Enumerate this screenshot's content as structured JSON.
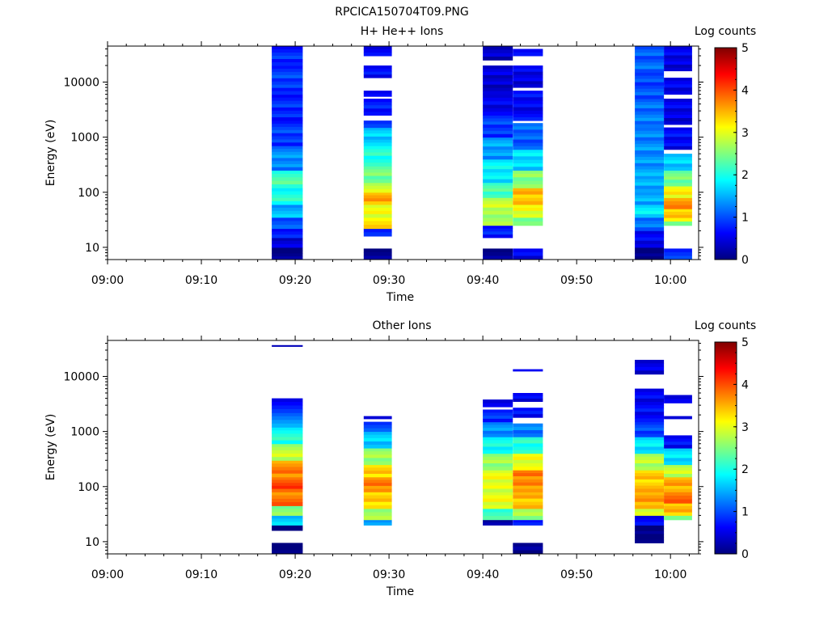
{
  "figure_title": "RPCICA150704T09.PNG",
  "colormap": [
    "#00007f",
    "#0000ff",
    "#007fff",
    "#00ffff",
    "#7fff7f",
    "#ffff00",
    "#ff7f00",
    "#ff0000",
    "#7f0000"
  ],
  "chart_data": [
    {
      "type": "heatmap",
      "title": "H+ He++ Ions",
      "xlabel": "Time",
      "ylabel": "Energy (eV)",
      "colorbar_label": "Log counts",
      "x_ticks": [
        "09:00",
        "09:10",
        "09:20",
        "09:30",
        "09:40",
        "09:50",
        "10:00"
      ],
      "x_range_minutes": [
        0,
        63
      ],
      "y_scale": "log",
      "y_range": [
        6,
        45000
      ],
      "y_ticks": [
        "10",
        "100",
        "1000",
        "10000"
      ],
      "colorbar_range": [
        0,
        5
      ],
      "colorbar_ticks": [
        "0",
        "1",
        "2",
        "3",
        "4",
        "5"
      ],
      "columns": [
        {
          "x_start": 17.5,
          "x_end": 20.8,
          "cells": [
            [
              6,
              10,
              0.0
            ],
            [
              10,
              15,
              0.5
            ],
            [
              15,
              22,
              0.8
            ],
            [
              22,
              35,
              1.1
            ],
            [
              35,
              60,
              1.5
            ],
            [
              60,
              120,
              2.0
            ],
            [
              120,
              250,
              2.2
            ],
            [
              250,
              700,
              1.3
            ],
            [
              700,
              2000,
              0.9
            ],
            [
              2000,
              6000,
              0.8
            ],
            [
              6000,
              20000,
              0.9
            ],
            [
              20000,
              45000,
              0.8
            ]
          ]
        },
        {
          "x_start": 27.3,
          "x_end": 30.3,
          "cells": [
            [
              6,
              9.5,
              0.0
            ],
            [
              16,
              22,
              0.8
            ],
            [
              22,
              35,
              3.2
            ],
            [
              35,
              60,
              3.0
            ],
            [
              60,
              100,
              3.5
            ],
            [
              100,
              150,
              2.8
            ],
            [
              150,
              300,
              2.4
            ],
            [
              300,
              700,
              2.0
            ],
            [
              700,
              1500,
              1.6
            ],
            [
              1500,
              2000,
              0.9
            ],
            [
              2500,
              5000,
              0.7
            ],
            [
              5500,
              7000,
              0.6
            ],
            [
              12000,
              20000,
              0.6
            ],
            [
              30000,
              45000,
              0.5
            ]
          ]
        },
        {
          "x_start": 40.0,
          "x_end": 43.2,
          "cells": [
            [
              6,
              9.5,
              0.0
            ],
            [
              15,
              25,
              0.7
            ],
            [
              25,
              40,
              2.6
            ],
            [
              40,
              80,
              2.8
            ],
            [
              80,
              150,
              2.2
            ],
            [
              150,
              400,
              1.8
            ],
            [
              400,
              1000,
              1.4
            ],
            [
              1000,
              2500,
              0.9
            ],
            [
              2500,
              6000,
              0.5
            ],
            [
              6000,
              20000,
              0.4
            ],
            [
              25000,
              45000,
              0.3
            ]
          ]
        },
        {
          "x_start": 43.2,
          "x_end": 46.4,
          "cells": [
            [
              6,
              9.5,
              0.5
            ],
            [
              25,
              35,
              2.3
            ],
            [
              35,
              60,
              3.0
            ],
            [
              60,
              120,
              3.4
            ],
            [
              120,
              250,
              2.5
            ],
            [
              250,
              600,
              1.7
            ],
            [
              600,
              1800,
              1.1
            ],
            [
              2000,
              7000,
              0.6
            ],
            [
              8000,
              20000,
              0.5
            ],
            [
              30000,
              40000,
              0.5
            ]
          ]
        },
        {
          "x_start": 56.2,
          "x_end": 59.3,
          "cells": [
            [
              6,
              10,
              0.0
            ],
            [
              10,
              20,
              0.6
            ],
            [
              20,
              35,
              1.2
            ],
            [
              35,
              60,
              1.8
            ],
            [
              60,
              100,
              1.5
            ],
            [
              100,
              200,
              1.5
            ],
            [
              200,
              500,
              1.4
            ],
            [
              500,
              1500,
              1.3
            ],
            [
              1500,
              5000,
              1.2
            ],
            [
              5000,
              15000,
              1.0
            ],
            [
              15000,
              45000,
              1.1
            ]
          ]
        },
        {
          "x_start": 59.3,
          "x_end": 62.3,
          "cells": [
            [
              6,
              9.5,
              0.8
            ],
            [
              25,
              30,
              2.5
            ],
            [
              30,
              50,
              3.3
            ],
            [
              50,
              80,
              3.6
            ],
            [
              80,
              130,
              3.1
            ],
            [
              130,
              250,
              2.4
            ],
            [
              250,
              500,
              1.6
            ],
            [
              600,
              1500,
              0.6
            ],
            [
              1700,
              5000,
              0.5
            ],
            [
              6000,
              12000,
              0.5
            ],
            [
              16000,
              45000,
              0.5
            ]
          ]
        }
      ]
    },
    {
      "type": "heatmap",
      "title": "Other Ions",
      "xlabel": "Time",
      "ylabel": "Energy (eV)",
      "colorbar_label": "Log counts",
      "x_ticks": [
        "09:00",
        "09:10",
        "09:20",
        "09:30",
        "09:40",
        "09:50",
        "10:00"
      ],
      "x_range_minutes": [
        0,
        63
      ],
      "y_scale": "log",
      "y_range": [
        6,
        45000
      ],
      "y_ticks": [
        "10",
        "100",
        "1000",
        "10000"
      ],
      "colorbar_range": [
        0,
        5
      ],
      "colorbar_ticks": [
        "0",
        "1",
        "2",
        "3",
        "4",
        "5"
      ],
      "columns": [
        {
          "x_start": 17.5,
          "x_end": 20.8,
          "cells": [
            [
              6,
              9.5,
              0.0
            ],
            [
              16,
              20,
              0.0
            ],
            [
              20,
              30,
              1.7
            ],
            [
              30,
              45,
              2.6
            ],
            [
              45,
              80,
              3.8
            ],
            [
              80,
              150,
              4.0
            ],
            [
              150,
              300,
              3.7
            ],
            [
              300,
              600,
              2.8
            ],
            [
              600,
              1200,
              2.0
            ],
            [
              1200,
              2200,
              1.3
            ],
            [
              2200,
              4000,
              0.7
            ],
            [
              35000,
              37000,
              0.5
            ]
          ]
        },
        {
          "x_start": 27.3,
          "x_end": 30.3,
          "cells": [
            [
              20,
              25,
              1.4
            ],
            [
              25,
              40,
              2.6
            ],
            [
              40,
              80,
              3.3
            ],
            [
              80,
              150,
              3.7
            ],
            [
              150,
              250,
              3.3
            ],
            [
              250,
              500,
              2.6
            ],
            [
              500,
              1000,
              1.6
            ],
            [
              1000,
              1500,
              0.9
            ],
            [
              1700,
              1900,
              0.5
            ]
          ]
        },
        {
          "x_start": 40.0,
          "x_end": 43.2,
          "cells": [
            [
              20,
              25,
              0.2
            ],
            [
              25,
              40,
              2.1
            ],
            [
              40,
              80,
              3.0
            ],
            [
              80,
              200,
              3.0
            ],
            [
              200,
              400,
              2.6
            ],
            [
              400,
              800,
              1.9
            ],
            [
              800,
              1500,
              1.3
            ],
            [
              1500,
              2500,
              0.8
            ],
            [
              2800,
              3800,
              0.5
            ]
          ]
        },
        {
          "x_start": 43.2,
          "x_end": 46.4,
          "cells": [
            [
              6,
              9.5,
              0.0
            ],
            [
              20,
              25,
              0.6
            ],
            [
              25,
              40,
              2.6
            ],
            [
              40,
              80,
              3.4
            ],
            [
              80,
              200,
              3.7
            ],
            [
              200,
              400,
              3.0
            ],
            [
              400,
              800,
              2.0
            ],
            [
              800,
              1400,
              1.2
            ],
            [
              1800,
              2700,
              0.6
            ],
            [
              3500,
              5000,
              0.5
            ],
            [
              12500,
              13500,
              0.5
            ]
          ]
        },
        {
          "x_start": 56.2,
          "x_end": 59.3,
          "cells": [
            [
              9.5,
              20,
              0.0
            ],
            [
              20,
              30,
              0.6
            ],
            [
              30,
              40,
              3.0
            ],
            [
              40,
              80,
              3.6
            ],
            [
              80,
              200,
              3.4
            ],
            [
              200,
              400,
              2.8
            ],
            [
              400,
              800,
              1.8
            ],
            [
              800,
              1500,
              1.0
            ],
            [
              1500,
              6000,
              0.6
            ],
            [
              11000,
              20000,
              0.5
            ]
          ]
        },
        {
          "x_start": 59.3,
          "x_end": 62.3,
          "cells": [
            [
              25,
              30,
              2.5
            ],
            [
              30,
              50,
              3.4
            ],
            [
              50,
              80,
              3.8
            ],
            [
              80,
              150,
              3.5
            ],
            [
              150,
              250,
              2.8
            ],
            [
              250,
              500,
              1.7
            ],
            [
              500,
              850,
              0.6
            ],
            [
              1700,
              1900,
              0.5
            ],
            [
              3300,
              4600,
              0.5
            ]
          ]
        }
      ]
    }
  ]
}
